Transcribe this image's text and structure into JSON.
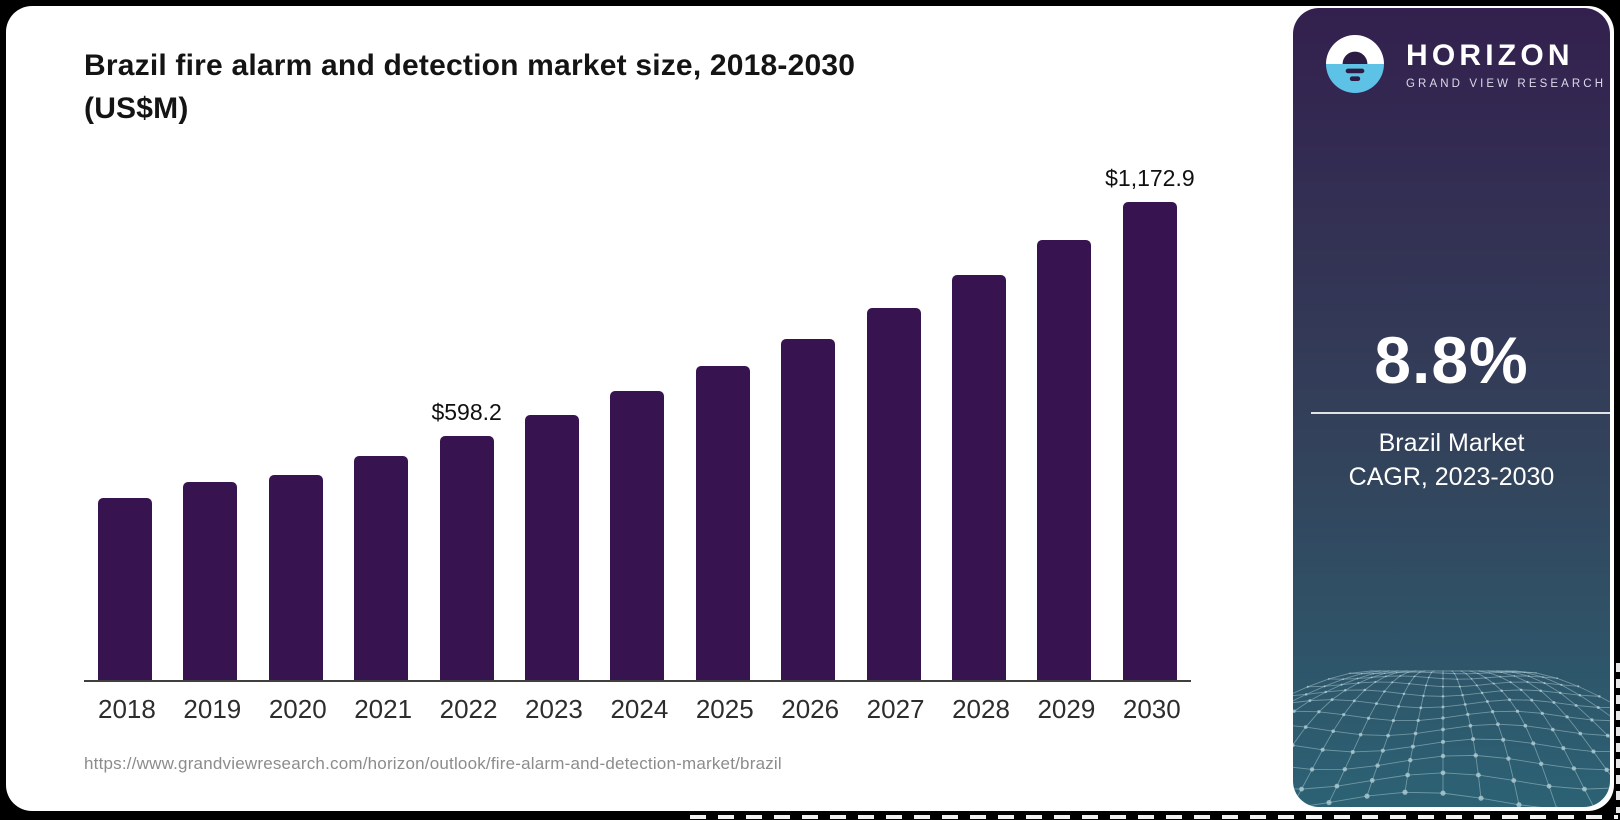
{
  "chart": {
    "title_line1": "Brazil fire alarm and detection market size, 2018-2030",
    "title_line2": "(US$M)",
    "source_url": "https://www.grandviewresearch.com/horizon/outlook/fire-alarm-and-detection-market/brazil"
  },
  "chart_data": {
    "type": "bar",
    "title": "Brazil fire alarm and detection market size, 2018-2030 (US$M)",
    "categories": [
      "2018",
      "2019",
      "2020",
      "2021",
      "2022",
      "2023",
      "2024",
      "2025",
      "2026",
      "2027",
      "2028",
      "2029",
      "2030"
    ],
    "values": [
      447,
      485,
      503,
      549,
      598.2,
      650,
      710,
      770,
      837,
      912,
      993,
      1079,
      1172.9
    ],
    "data_labels": [
      "",
      "",
      "",
      "",
      "$598.2",
      "",
      "",
      "",
      "",
      "",
      "",
      "",
      "$1,172.9"
    ],
    "xlabel": "",
    "ylabel": "US$M",
    "ylim": [
      0,
      1250
    ],
    "grid": false,
    "legend": false,
    "bar_color": "#371450",
    "axis_color": "#3f3f3f"
  },
  "panel": {
    "brand": "HORIZON",
    "brand_sub": "GRAND VIEW RESEARCH",
    "stat_value": "8.8%",
    "stat_label_line1": "Brazil Market",
    "stat_label_line2": "CAGR, 2023-2030",
    "gradient_top": "#33204e",
    "gradient_bottom": "#2c6274",
    "logo_blue": "#5ec1e6",
    "logo_dark": "#2c1c43"
  }
}
